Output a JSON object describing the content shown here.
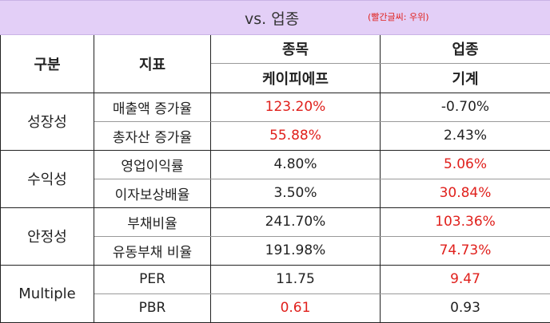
{
  "banner": {
    "title": "vs. 업종",
    "note": "(빨간글씨: 우위)"
  },
  "header": {
    "category": "구분",
    "metric": "지표",
    "stock_label": "종목",
    "stock_name": "케이피에프",
    "industry_label": "업종",
    "industry_name": "기계"
  },
  "groups": [
    {
      "name": "성장성",
      "rows": [
        {
          "metric": "매출액 증가율",
          "stock": "123.20%",
          "industry": "-0.70%",
          "winner": "stock"
        },
        {
          "metric": "총자산 증가율",
          "stock": "55.88%",
          "industry": "2.43%",
          "winner": "stock"
        }
      ]
    },
    {
      "name": "수익성",
      "rows": [
        {
          "metric": "영업이익률",
          "stock": "4.80%",
          "industry": "5.06%",
          "winner": "industry"
        },
        {
          "metric": "이자보상배율",
          "stock": "3.50%",
          "industry": "30.84%",
          "winner": "industry"
        }
      ]
    },
    {
      "name": "안정성",
      "rows": [
        {
          "metric": "부채비율",
          "stock": "241.70%",
          "industry": "103.36%",
          "winner": "industry"
        },
        {
          "metric": "유동부채 비율",
          "stock": "191.98%",
          "industry": "74.73%",
          "winner": "industry"
        }
      ]
    },
    {
      "name": "Multiple",
      "rows": [
        {
          "metric": "PER",
          "stock": "11.75",
          "industry": "9.47",
          "winner": "industry"
        },
        {
          "metric": "PBR",
          "stock": "0.61",
          "industry": "0.93",
          "winner": "stock"
        }
      ]
    }
  ],
  "colors": {
    "banner_bg": "#e3cff7",
    "advantage_red": "#e0201c",
    "text": "#222222"
  }
}
